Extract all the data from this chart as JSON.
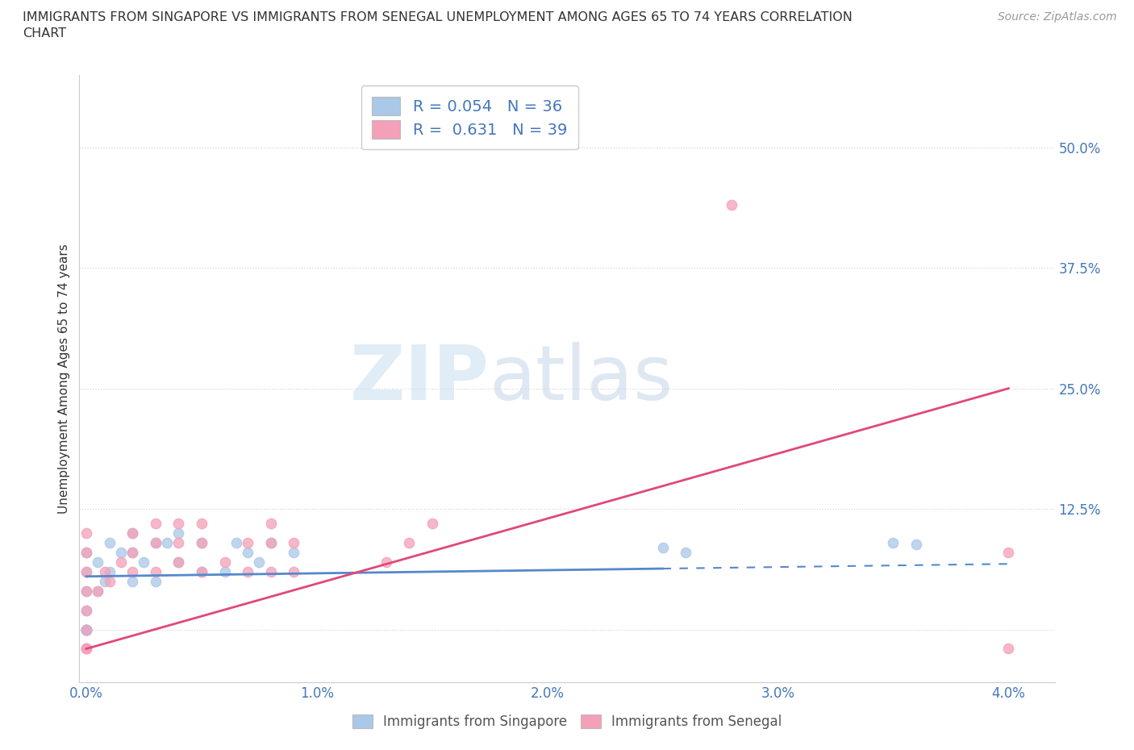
{
  "title_line1": "IMMIGRANTS FROM SINGAPORE VS IMMIGRANTS FROM SENEGAL UNEMPLOYMENT AMONG AGES 65 TO 74 YEARS CORRELATION",
  "title_line2": "CHART",
  "source": "Source: ZipAtlas.com",
  "ylabel_label": "Unemployment Among Ages 65 to 74 years",
  "xlim": [
    -0.0003,
    0.042
  ],
  "ylim": [
    -0.055,
    0.575
  ],
  "yticks": [
    0.0,
    0.125,
    0.25,
    0.375,
    0.5
  ],
  "ytick_labels": [
    "",
    "12.5%",
    "25.0%",
    "37.5%",
    "50.0%"
  ],
  "xticks": [
    0.0,
    0.01,
    0.02,
    0.03,
    0.04
  ],
  "xtick_labels": [
    "0.0%",
    "1.0%",
    "2.0%",
    "3.0%",
    "4.0%"
  ],
  "singapore_color": "#aac8e8",
  "senegal_color": "#f4a0b8",
  "singapore_line_color": "#5588cc",
  "senegal_line_color": "#e04878",
  "r_singapore": 0.054,
  "n_singapore": 36,
  "r_senegal": 0.631,
  "n_senegal": 39,
  "watermark_zip": "ZIP",
  "watermark_atlas": "atlas",
  "background_color": "#ffffff",
  "grid_color": "#d8d8d8",
  "tick_color": "#4477bb",
  "title_color": "#333333",
  "ylabel_color": "#333333",
  "sg_x": [
    0.0,
    0.0,
    0.0,
    0.0,
    0.0,
    0.0,
    0.0,
    0.0,
    0.0,
    0.0005,
    0.0005,
    0.0008,
    0.001,
    0.001,
    0.0015,
    0.002,
    0.002,
    0.002,
    0.0025,
    0.003,
    0.003,
    0.0035,
    0.004,
    0.004,
    0.005,
    0.005,
    0.006,
    0.0065,
    0.007,
    0.0075,
    0.008,
    0.009,
    0.025,
    0.026,
    0.035,
    0.036
  ],
  "sg_y": [
    0.0,
    0.0,
    0.0,
    0.0,
    0.0,
    0.02,
    0.04,
    0.06,
    0.08,
    0.04,
    0.07,
    0.05,
    0.06,
    0.09,
    0.08,
    0.05,
    0.08,
    0.1,
    0.07,
    0.05,
    0.09,
    0.09,
    0.07,
    0.1,
    0.06,
    0.09,
    0.06,
    0.09,
    0.08,
    0.07,
    0.09,
    0.08,
    0.085,
    0.08,
    0.09,
    0.088
  ],
  "sn_x": [
    0.0,
    0.0,
    0.0,
    0.0,
    0.0,
    0.0,
    0.0,
    0.0,
    0.0,
    0.0005,
    0.0008,
    0.001,
    0.0015,
    0.002,
    0.002,
    0.002,
    0.003,
    0.003,
    0.003,
    0.004,
    0.004,
    0.004,
    0.005,
    0.005,
    0.005,
    0.006,
    0.007,
    0.007,
    0.008,
    0.008,
    0.008,
    0.009,
    0.009,
    0.013,
    0.014,
    0.015,
    0.028,
    0.04,
    0.04
  ],
  "sn_y": [
    -0.02,
    -0.02,
    -0.02,
    0.0,
    0.02,
    0.04,
    0.06,
    0.08,
    0.1,
    0.04,
    0.06,
    0.05,
    0.07,
    0.06,
    0.08,
    0.1,
    0.06,
    0.09,
    0.11,
    0.07,
    0.09,
    0.11,
    0.06,
    0.09,
    0.11,
    0.07,
    0.06,
    0.09,
    0.06,
    0.09,
    0.11,
    0.06,
    0.09,
    0.07,
    0.09,
    0.11,
    0.44,
    -0.02,
    0.08
  ],
  "sg_line_x0": 0.0,
  "sg_line_x1": 0.04,
  "sg_line_y0": 0.055,
  "sg_line_y1": 0.068,
  "sg_line_solid_end": 0.025,
  "sn_line_x0": 0.0,
  "sn_line_x1": 0.04,
  "sn_line_y0": -0.02,
  "sn_line_y1": 0.25
}
